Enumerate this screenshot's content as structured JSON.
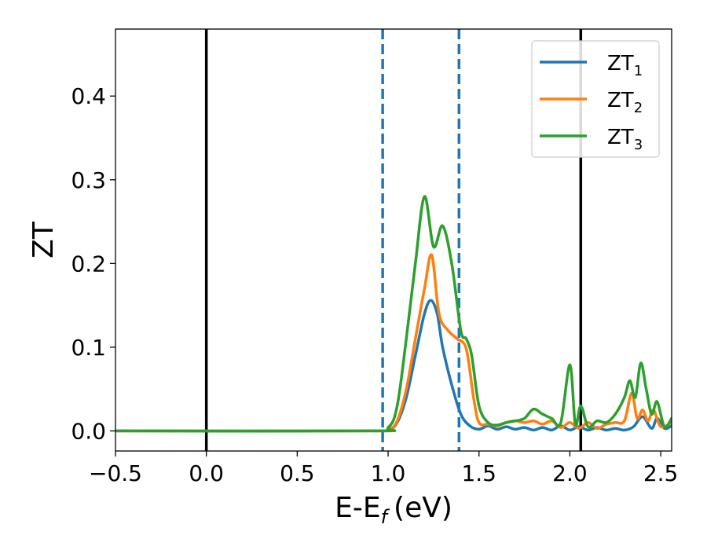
{
  "chart_data": {
    "type": "line",
    "title": "",
    "xlabel": "E-E",
    "xlabel_sub": "f",
    "xlabel_unit": "(eV)",
    "ylabel": "ZT",
    "xlim": [
      -0.5,
      2.56
    ],
    "ylim": [
      -0.024,
      0.48
    ],
    "xticks": [
      -0.5,
      0.0,
      0.5,
      1.0,
      1.5,
      2.0,
      2.5
    ],
    "xtick_labels": [
      "−0.5",
      "0.0",
      "0.5",
      "1.0",
      "1.5",
      "2.0",
      "2.5"
    ],
    "yticks": [
      0.0,
      0.1,
      0.2,
      0.3,
      0.4
    ],
    "ytick_labels": [
      "0.0",
      "0.1",
      "0.2",
      "0.3",
      "0.4"
    ],
    "grid": false,
    "legend": "top-right",
    "vlines": [
      {
        "x": 0.0,
        "style": "solid",
        "color": "#000000"
      },
      {
        "x": 2.06,
        "style": "solid",
        "color": "#000000"
      },
      {
        "x": 0.97,
        "style": "dashed",
        "color": "#1f77b4"
      },
      {
        "x": 1.39,
        "style": "dashed",
        "color": "#1f77b4"
      }
    ],
    "series": [
      {
        "name": "ZT",
        "name_sub": "1",
        "color": "#1f77b4",
        "x": [
          -0.5,
          0.9,
          1.0,
          1.05,
          1.1,
          1.15,
          1.2,
          1.235,
          1.27,
          1.3,
          1.35,
          1.4,
          1.45,
          1.5,
          1.55,
          1.6,
          1.65,
          1.7,
          1.75,
          1.8,
          1.85,
          1.9,
          1.95,
          2.0,
          2.05,
          2.1,
          2.15,
          2.2,
          2.25,
          2.3,
          2.35,
          2.4,
          2.45,
          2.48,
          2.52,
          2.56
        ],
        "y": [
          0.0,
          0.0,
          0.0015,
          0.01,
          0.04,
          0.09,
          0.14,
          0.156,
          0.14,
          0.1,
          0.055,
          0.02,
          0.006,
          0.002,
          0.006,
          0.002,
          0.005,
          0.002,
          0.004,
          0.001,
          0.004,
          0.001,
          0.006,
          0.001,
          0.005,
          0.001,
          0.004,
          0.001,
          0.003,
          0.001,
          0.005,
          0.017,
          0.003,
          0.015,
          0.003,
          0.006
        ]
      },
      {
        "name": "ZT",
        "name_sub": "2",
        "color": "#ff7f0e",
        "x": [
          -0.5,
          0.9,
          1.0,
          1.05,
          1.1,
          1.15,
          1.2,
          1.24,
          1.28,
          1.33,
          1.38,
          1.43,
          1.47,
          1.5,
          1.55,
          1.6,
          1.65,
          1.7,
          1.75,
          1.8,
          1.85,
          1.9,
          1.95,
          2.0,
          2.05,
          2.1,
          2.15,
          2.2,
          2.25,
          2.3,
          2.34,
          2.37,
          2.4,
          2.43,
          2.46,
          2.5,
          2.56
        ],
        "y": [
          0.0,
          0.0,
          0.002,
          0.012,
          0.05,
          0.11,
          0.17,
          0.21,
          0.14,
          0.12,
          0.11,
          0.098,
          0.04,
          0.01,
          0.008,
          0.006,
          0.01,
          0.012,
          0.01,
          0.012,
          0.008,
          0.012,
          0.004,
          0.01,
          0.003,
          0.01,
          0.003,
          0.008,
          0.01,
          0.012,
          0.045,
          0.015,
          0.025,
          0.012,
          0.025,
          0.005,
          0.01
        ]
      },
      {
        "name": "ZT",
        "name_sub": "3",
        "color": "#2ca02c",
        "x": [
          -0.5,
          0.9,
          1.0,
          1.05,
          1.1,
          1.15,
          1.2,
          1.25,
          1.3,
          1.35,
          1.4,
          1.43,
          1.46,
          1.5,
          1.55,
          1.6,
          1.65,
          1.7,
          1.75,
          1.8,
          1.85,
          1.9,
          1.95,
          2.0,
          2.03,
          2.06,
          2.1,
          2.15,
          2.2,
          2.25,
          2.3,
          2.33,
          2.36,
          2.39,
          2.42,
          2.45,
          2.48,
          2.52,
          2.56
        ],
        "y": [
          0.0,
          0.0,
          0.004,
          0.03,
          0.11,
          0.2,
          0.28,
          0.22,
          0.245,
          0.2,
          0.12,
          0.11,
          0.09,
          0.03,
          0.01,
          0.007,
          0.01,
          0.012,
          0.015,
          0.026,
          0.02,
          0.015,
          0.01,
          0.079,
          0.008,
          0.03,
          0.005,
          0.012,
          0.01,
          0.02,
          0.04,
          0.06,
          0.04,
          0.081,
          0.05,
          0.02,
          0.035,
          0.005,
          0.015
        ]
      }
    ]
  }
}
